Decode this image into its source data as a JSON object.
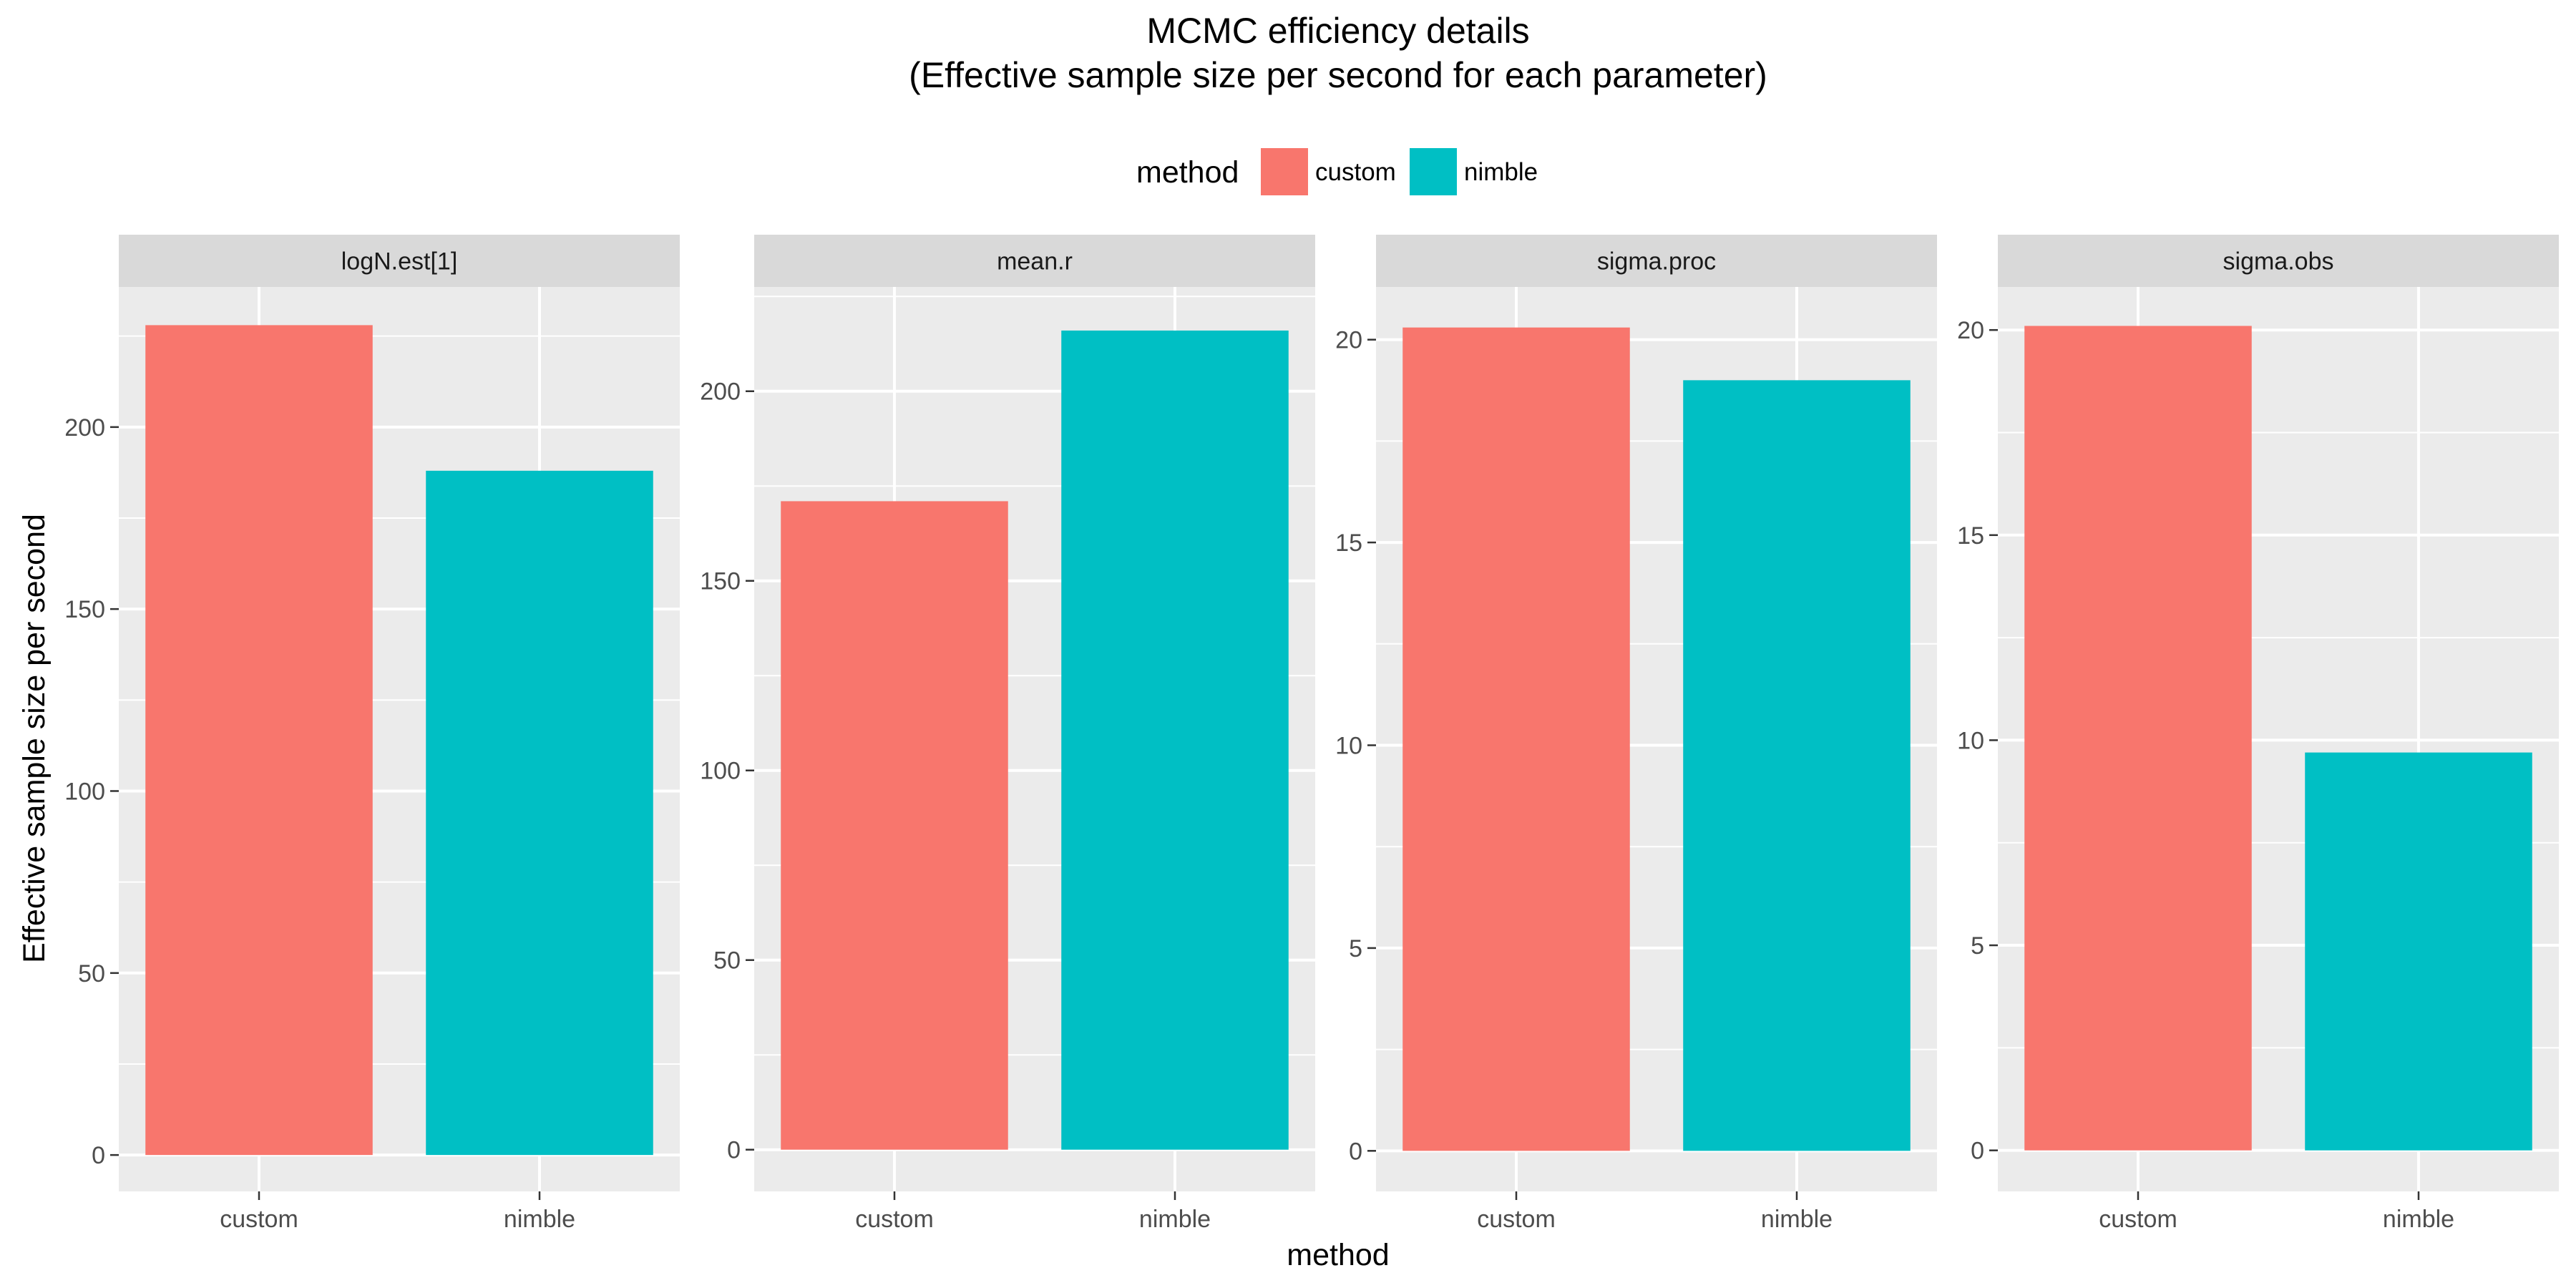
{
  "chart_data": {
    "type": "bar",
    "title_line1": "MCMC efficiency details",
    "title_line2": "(Effective sample size per second for each parameter)",
    "xlabel": "method",
    "ylabel": "Effective sample size per second",
    "legend": {
      "title": "method",
      "placement": "top",
      "items": [
        {
          "label": "custom",
          "color": "#F8766D"
        },
        {
          "label": "nimble",
          "color": "#00BFC4"
        }
      ]
    },
    "categories": [
      "custom",
      "nimble"
    ],
    "grid": true,
    "panels": [
      {
        "facet": "logN.est[1]",
        "values": [
          228,
          188
        ],
        "ylim": [
          -10,
          238.5
        ],
        "yticks": [
          0,
          50,
          100,
          150,
          200
        ]
      },
      {
        "facet": "mean.r",
        "values": [
          171,
          216
        ],
        "ylim": [
          -11,
          227.5
        ],
        "yticks": [
          0,
          50,
          100,
          150,
          200
        ]
      },
      {
        "facet": "sigma.proc",
        "values": [
          20.3,
          19
        ],
        "ylim": [
          -1.0,
          21.3
        ],
        "yticks": [
          0,
          5,
          10,
          15,
          20
        ]
      },
      {
        "facet": "sigma.obs",
        "values": [
          20.1,
          9.7
        ],
        "ylim": [
          -1.0,
          21.05
        ],
        "yticks": [
          0,
          5,
          10,
          15,
          20
        ]
      }
    ]
  }
}
